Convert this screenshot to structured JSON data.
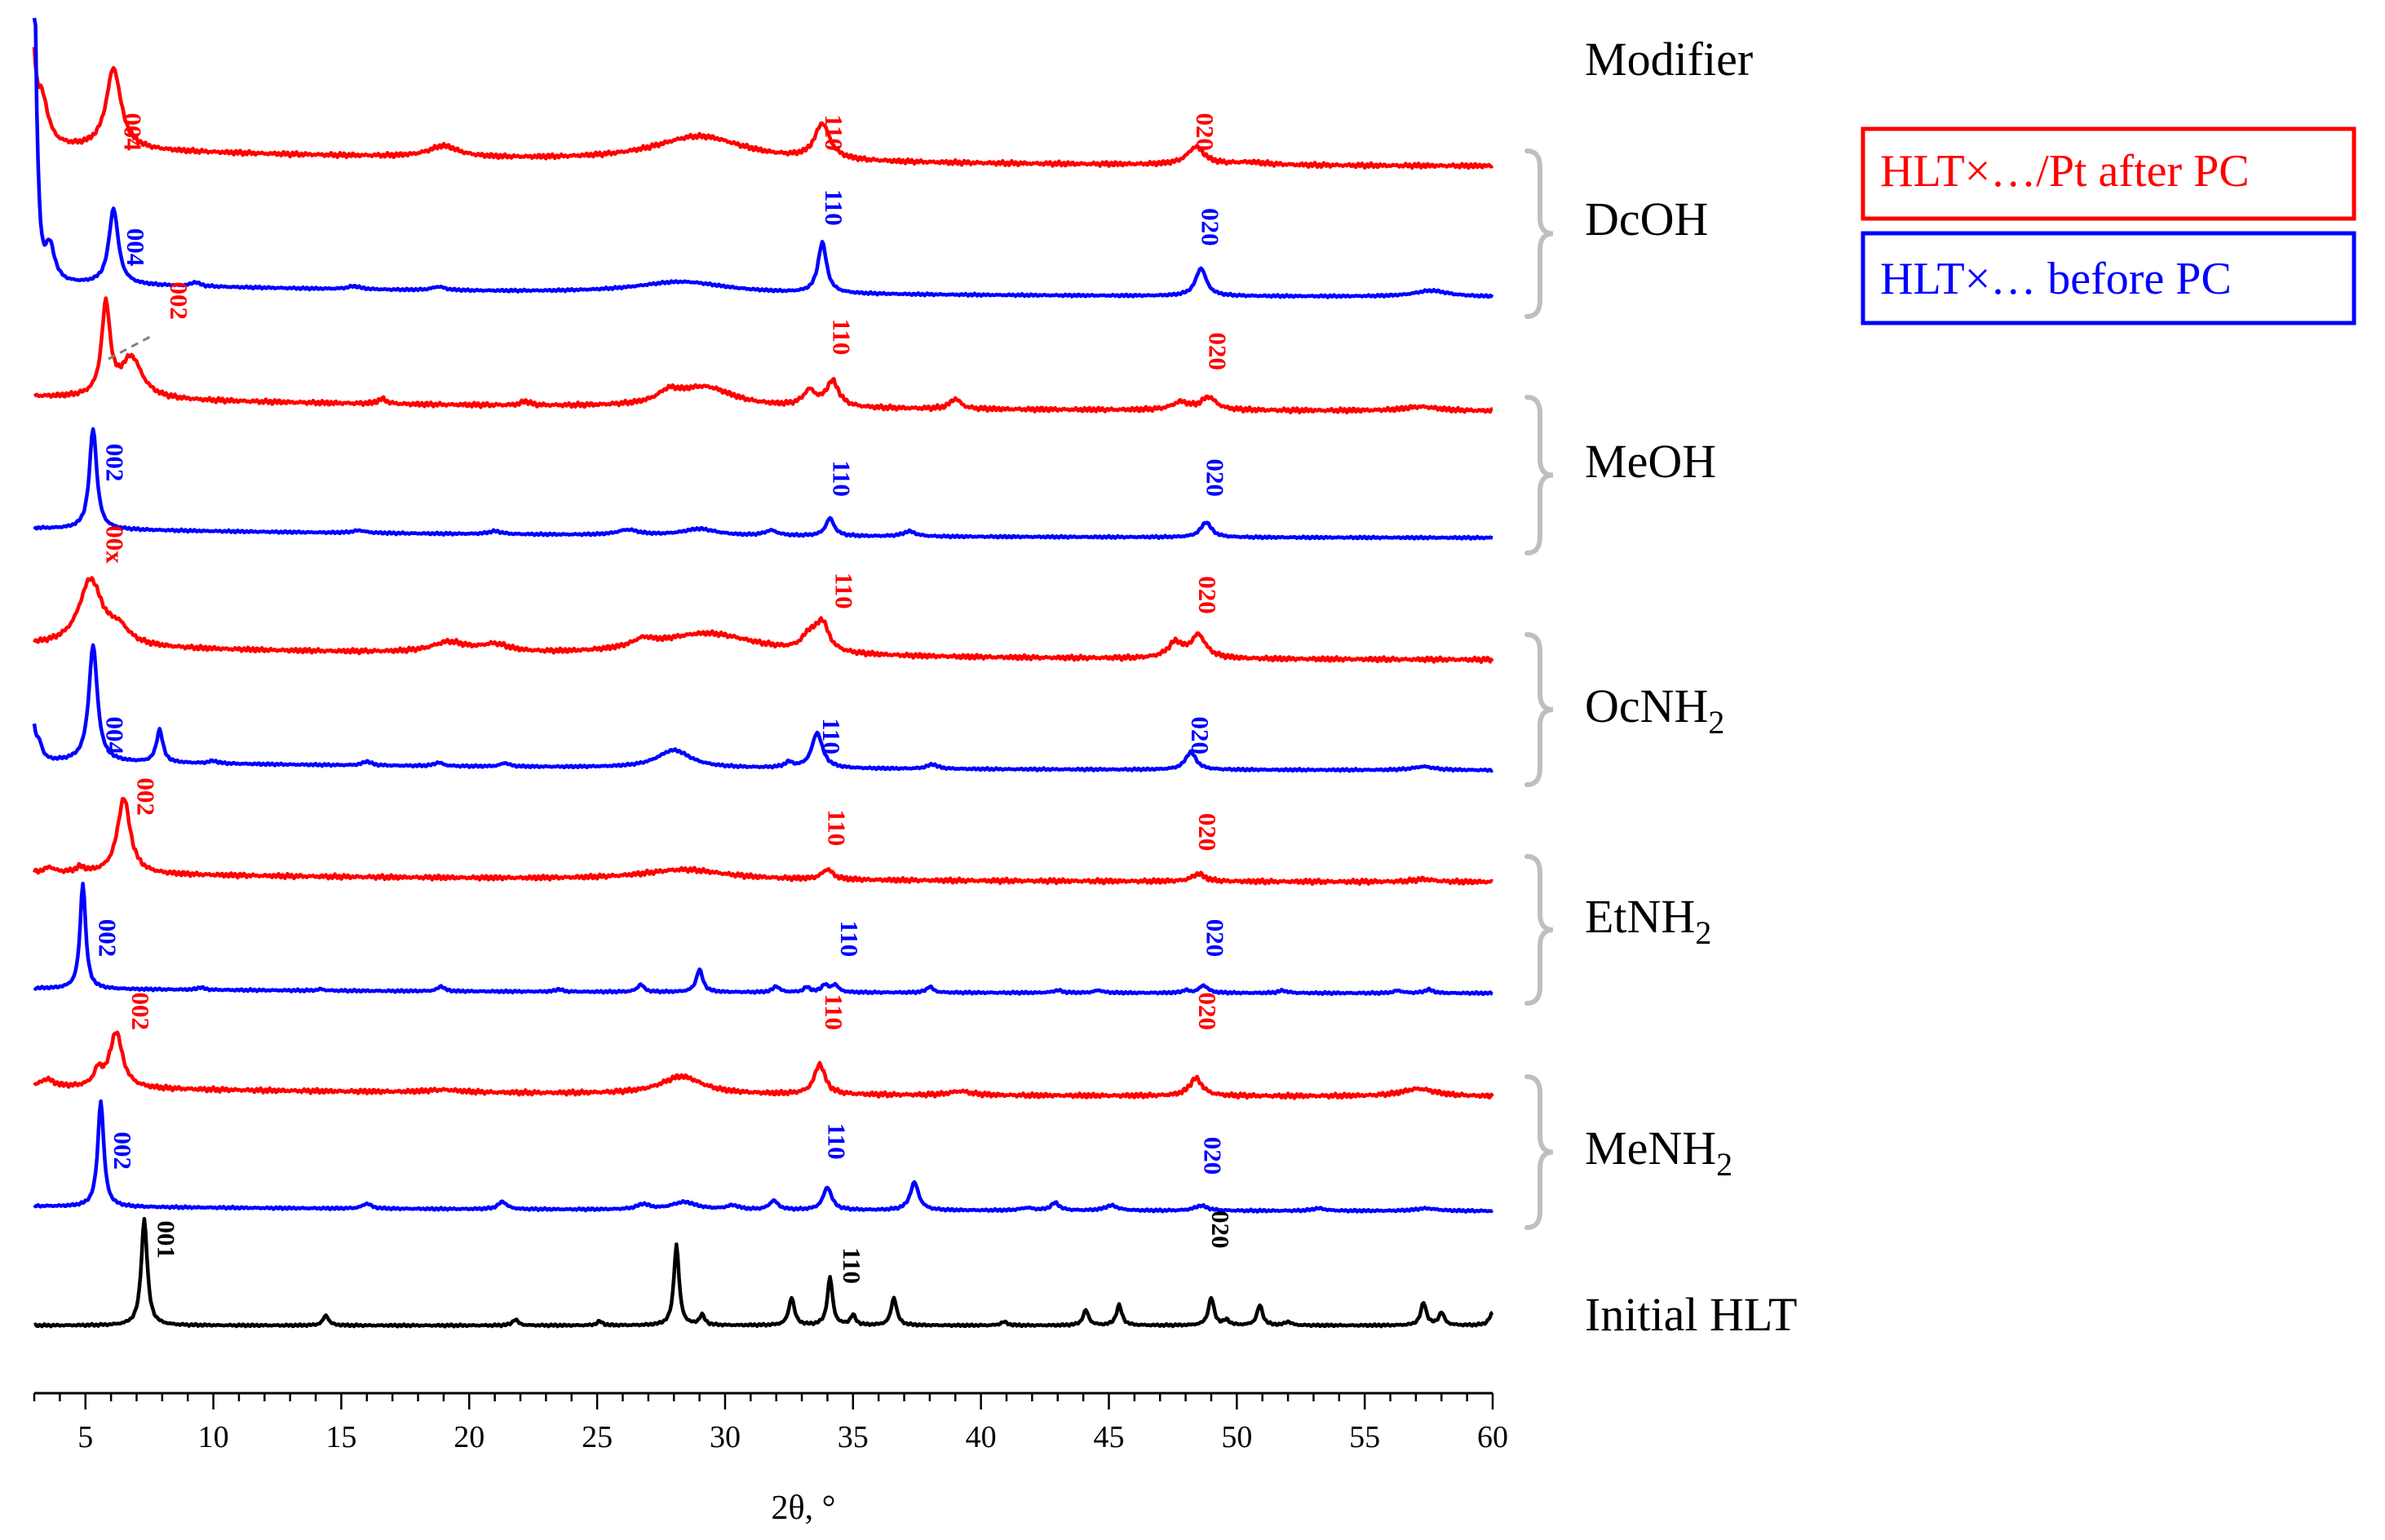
{
  "chart_data": {
    "type": "line",
    "title": "",
    "xlabel": "2θ, °",
    "ylabel": "",
    "xlim": [
      3,
      60
    ],
    "xticks": [
      5,
      10,
      15,
      20,
      25,
      30,
      35,
      40,
      45,
      50,
      55,
      60
    ],
    "legend": [
      {
        "name": "HLT×…/Pt after PC",
        "color": "#ff0000"
      },
      {
        "name": "HLT×… before PC",
        "color": "#0000ff"
      }
    ],
    "legend_position": "top-right",
    "modifier_header": "Modifier",
    "groups": [
      {
        "name": "DcOH",
        "sub": ""
      },
      {
        "name": "MeOH",
        "sub": ""
      },
      {
        "name": "OcNH",
        "sub": "2"
      },
      {
        "name": "EtNH",
        "sub": "2"
      },
      {
        "name": "MeNH",
        "sub": "2"
      }
    ],
    "initial_label": "Initial HLT",
    "series": [
      {
        "name": "DcOH after PC",
        "color": "#ff0000",
        "baseline": 0.4,
        "start": 1.5,
        "peaks": [
          [
            3.3,
            1.0,
            0.3
          ],
          [
            6.1,
            1.6,
            0.35
          ],
          [
            19,
            0.22,
            0.7
          ],
          [
            29,
            0.5,
            2.2
          ],
          [
            33.8,
            0.7,
            0.35
          ],
          [
            48.4,
            0.35,
            0.4
          ],
          [
            50.5,
            0.05,
            0.8
          ]
        ],
        "labels": [
          {
            "text": "004",
            "x": 6.5,
            "y": 0.0
          },
          {
            "text": "110",
            "x": 33.9,
            "y": 0.0
          },
          {
            "text": "020",
            "x": 48.4,
            "y": 0.0
          }
        ]
      },
      {
        "name": "DcOH before PC",
        "color": "#0000ff",
        "baseline": 0.3,
        "start": 7.5,
        "peaks": [
          [
            3.6,
            0.8,
            0.25
          ],
          [
            6.1,
            1.5,
            0.22
          ],
          [
            9.3,
            0.08,
            0.2
          ],
          [
            15.5,
            0.06,
            0.3
          ],
          [
            18.8,
            0.07,
            0.3
          ],
          [
            28.3,
            0.23,
            2.2
          ],
          [
            33.8,
            1.0,
            0.2
          ],
          [
            48.6,
            0.55,
            0.25
          ],
          [
            57.6,
            0.12,
            0.8
          ]
        ],
        "labels": [
          {
            "text": "004",
            "x": 6.6,
            "y": 0.3
          },
          {
            "text": "110",
            "x": 33.9,
            "y": 1.1
          },
          {
            "text": "020",
            "x": 48.6,
            "y": 0.7
          }
        ]
      },
      {
        "name": "MeOH after PC",
        "color": "#ff0000",
        "baseline": 0.3,
        "start": 0,
        "peaks": [
          [
            5.8,
            1.8,
            0.2
          ],
          [
            6.8,
            0.8,
            0.5
          ],
          [
            16.6,
            0.1,
            0.2
          ],
          [
            22.2,
            0.08,
            0.2
          ],
          [
            29.2,
            0.4,
            1.4
          ],
          [
            27.8,
            0.2,
            0.5
          ],
          [
            33.3,
            0.3,
            0.3
          ],
          [
            34.2,
            0.5,
            0.3
          ],
          [
            39.0,
            0.2,
            0.25
          ],
          [
            47.8,
            0.15,
            0.4
          ],
          [
            48.9,
            0.25,
            0.35
          ],
          [
            57.2,
            0.08,
            0.8
          ]
        ],
        "labels": [
          {
            "text": "002",
            "x": 8.3,
            "y": 1.5
          },
          {
            "text": "110",
            "x": 34.2,
            "y": 0.8
          },
          {
            "text": "020",
            "x": 48.9,
            "y": 0.5
          }
        ]
      },
      {
        "name": "MeOH before PC",
        "color": "#0000ff",
        "baseline": 0.2,
        "start": 0,
        "peaks": [
          [
            5.3,
            2.0,
            0.17
          ],
          [
            15.7,
            0.05,
            0.3
          ],
          [
            21.0,
            0.06,
            0.3
          ],
          [
            26.2,
            0.1,
            0.5
          ],
          [
            29.0,
            0.13,
            0.8
          ],
          [
            31.8,
            0.1,
            0.3
          ],
          [
            34.1,
            0.35,
            0.2
          ],
          [
            37.2,
            0.1,
            0.3
          ],
          [
            48.8,
            0.3,
            0.25
          ]
        ],
        "labels": [
          {
            "text": "002",
            "x": 5.8,
            "y": 0.8
          },
          {
            "text": "110",
            "x": 34.2,
            "y": 0.5
          },
          {
            "text": "020",
            "x": 48.8,
            "y": 0.5
          }
        ]
      },
      {
        "name": "OcNH2 after PC",
        "color": "#ff0000",
        "baseline": 0.3,
        "start": 0,
        "peaks": [
          [
            5.2,
            1.3,
            0.55
          ],
          [
            6.3,
            0.3,
            0.5
          ],
          [
            19.2,
            0.2,
            0.8
          ],
          [
            21.0,
            0.15,
            0.7
          ],
          [
            29.3,
            0.45,
            2.5
          ],
          [
            26.8,
            0.15,
            0.5
          ],
          [
            33.3,
            0.3,
            0.35
          ],
          [
            33.8,
            0.55,
            0.3
          ],
          [
            47.6,
            0.3,
            0.35
          ],
          [
            48.5,
            0.45,
            0.35
          ]
        ],
        "labels": [
          {
            "text": "00x",
            "x": 5.8,
            "y": 1.6
          },
          {
            "text": "110",
            "x": 34.3,
            "y": 0.7
          },
          {
            "text": "020",
            "x": 48.5,
            "y": 0.6
          }
        ]
      },
      {
        "name": "OcNH2 before PC",
        "color": "#0000ff",
        "baseline": 0.2,
        "start": 0.6,
        "peaks": [
          [
            3.2,
            0.3,
            0.15
          ],
          [
            5.3,
            2.3,
            0.2
          ],
          [
            7.9,
            0.65,
            0.15
          ],
          [
            10,
            0.05,
            0.2
          ],
          [
            16.0,
            0.08,
            0.2
          ],
          [
            18.8,
            0.07,
            0.2
          ],
          [
            21.4,
            0.07,
            0.2
          ],
          [
            28.0,
            0.35,
            0.8
          ],
          [
            32.5,
            0.1,
            0.2
          ],
          [
            33.6,
            0.7,
            0.25
          ],
          [
            38.1,
            0.09,
            0.25
          ],
          [
            48.2,
            0.35,
            0.25
          ],
          [
            57.3,
            0.07,
            0.5
          ]
        ],
        "labels": [
          {
            "text": "004",
            "x": 5.8,
            "y": 0.0
          },
          {
            "text": "110",
            "x": 33.8,
            "y": 0.0
          },
          {
            "text": "020",
            "x": 48.2,
            "y": 0.0
          }
        ]
      },
      {
        "name": "EtNH2 after PC",
        "color": "#ff0000",
        "baseline": 0.2,
        "start": 0,
        "peaks": [
          [
            3.6,
            0.1,
            0.2
          ],
          [
            4.8,
            0.1,
            0.2
          ],
          [
            6.5,
            1.5,
            0.3
          ],
          [
            28.4,
            0.2,
            2.0
          ],
          [
            34.0,
            0.2,
            0.25
          ],
          [
            48.5,
            0.15,
            0.3
          ],
          [
            57.3,
            0.05,
            0.5
          ]
        ],
        "labels": [
          {
            "text": "002",
            "x": 7.0,
            "y": 1.0
          },
          {
            "text": "110",
            "x": 34.0,
            "y": 0.4
          },
          {
            "text": "020",
            "x": 48.5,
            "y": 0.3
          }
        ]
      },
      {
        "name": "EtNH2 before PC",
        "color": "#0000ff",
        "baseline": 0.1,
        "start": 0,
        "peaks": [
          [
            4.9,
            2.1,
            0.13
          ],
          [
            9.5,
            0.05,
            0.15
          ],
          [
            14.2,
            0.03,
            0.15
          ],
          [
            18.9,
            0.1,
            0.15
          ],
          [
            23.5,
            0.05,
            0.15
          ],
          [
            26.7,
            0.15,
            0.15
          ],
          [
            29.0,
            0.45,
            0.15
          ],
          [
            32.0,
            0.12,
            0.15
          ],
          [
            33.2,
            0.1,
            0.15
          ],
          [
            33.9,
            0.15,
            0.15
          ],
          [
            34.3,
            0.15,
            0.15
          ],
          [
            38.0,
            0.12,
            0.15
          ],
          [
            43.0,
            0.05,
            0.2
          ],
          [
            44.6,
            0.05,
            0.2
          ],
          [
            48.0,
            0.05,
            0.15
          ],
          [
            48.7,
            0.15,
            0.2
          ],
          [
            51.8,
            0.05,
            0.2
          ],
          [
            56.3,
            0.05,
            0.2
          ],
          [
            57.5,
            0.07,
            0.2
          ]
        ],
        "labels": [
          {
            "text": "002",
            "x": 5.5,
            "y": 0.4
          },
          {
            "text": "110",
            "x": 34.5,
            "y": 0.4
          },
          {
            "text": "020",
            "x": 48.8,
            "y": 0.4
          }
        ]
      },
      {
        "name": "MeNH2 after PC",
        "color": "#ff0000",
        "baseline": 0.2,
        "start": 0,
        "peaks": [
          [
            3.5,
            0.15,
            0.3
          ],
          [
            6.2,
            1.1,
            0.3
          ],
          [
            5.5,
            0.3,
            0.2
          ],
          [
            19,
            0.05,
            0.8
          ],
          [
            28.3,
            0.35,
            1.0
          ],
          [
            33.7,
            0.6,
            0.25
          ],
          [
            39.2,
            0.08,
            0.5
          ],
          [
            48.4,
            0.35,
            0.3
          ],
          [
            57.1,
            0.15,
            0.8
          ]
        ],
        "labels": [
          {
            "text": "002",
            "x": 6.8,
            "y": 1.0
          },
          {
            "text": "110",
            "x": 33.9,
            "y": 1.0
          },
          {
            "text": "020",
            "x": 48.5,
            "y": 1.0
          }
        ]
      },
      {
        "name": "MeNH2 before PC",
        "color": "#0000ff",
        "baseline": 0.1,
        "start": 0,
        "peaks": [
          [
            5.6,
            2.1,
            0.14
          ],
          [
            16.0,
            0.1,
            0.2
          ],
          [
            21.3,
            0.15,
            0.2
          ],
          [
            26.8,
            0.1,
            0.3
          ],
          [
            28.4,
            0.15,
            0.6
          ],
          [
            30.3,
            0.08,
            0.3
          ],
          [
            31.9,
            0.18,
            0.2
          ],
          [
            34.0,
            0.45,
            0.2
          ],
          [
            37.4,
            0.55,
            0.2
          ],
          [
            41.8,
            0.05,
            0.3
          ],
          [
            42.9,
            0.15,
            0.2
          ],
          [
            45.1,
            0.1,
            0.3
          ],
          [
            48.6,
            0.1,
            0.3
          ],
          [
            53.2,
            0.05,
            0.3
          ],
          [
            57.4,
            0.05,
            0.5
          ]
        ],
        "labels": [
          {
            "text": "002",
            "x": 6.1,
            "y": 0.5
          },
          {
            "text": "110",
            "x": 34.0,
            "y": 0.7
          },
          {
            "text": "020",
            "x": 48.7,
            "y": 0.4
          }
        ]
      },
      {
        "name": "Initial HLT",
        "color": "#000000",
        "baseline": 0.0,
        "start": 0,
        "peaks": [
          [
            7.3,
            2.1,
            0.14
          ],
          [
            14.4,
            0.2,
            0.13
          ],
          [
            21.8,
            0.12,
            0.13
          ],
          [
            25.1,
            0.08,
            0.13
          ],
          [
            28.1,
            1.6,
            0.12
          ],
          [
            29.1,
            0.2,
            0.12
          ],
          [
            32.6,
            0.55,
            0.13
          ],
          [
            34.1,
            0.95,
            0.12
          ],
          [
            35.0,
            0.2,
            0.12
          ],
          [
            36.6,
            0.55,
            0.13
          ],
          [
            40.9,
            0.07,
            0.15
          ],
          [
            44.1,
            0.3,
            0.13
          ],
          [
            45.4,
            0.4,
            0.13
          ],
          [
            49.0,
            0.55,
            0.13
          ],
          [
            49.6,
            0.1,
            0.13
          ],
          [
            50.9,
            0.4,
            0.13
          ],
          [
            52.0,
            0.07,
            0.15
          ],
          [
            57.3,
            0.45,
            0.13
          ],
          [
            58.0,
            0.25,
            0.13
          ],
          [
            60,
            0.25,
            0.15
          ]
        ],
        "labels": [
          {
            "text": "001",
            "x": 7.8,
            "y": 1.0
          },
          {
            "text": "110",
            "x": 34.6,
            "y": 0.5
          },
          {
            "text": "020",
            "x": 49.0,
            "y": 1.2
          }
        ]
      }
    ]
  }
}
